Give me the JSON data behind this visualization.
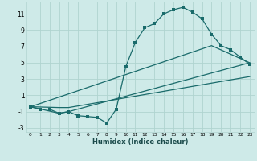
{
  "xlabel": "Humidex (Indice chaleur)",
  "bg_color": "#ceeae8",
  "grid_color": "#b0d4d0",
  "line_color": "#1a6b6b",
  "xlim": [
    -0.5,
    23.5
  ],
  "ylim": [
    -3.5,
    12.5
  ],
  "yticks": [
    -3,
    -1,
    1,
    3,
    5,
    7,
    9,
    11
  ],
  "xticks": [
    0,
    1,
    2,
    3,
    4,
    5,
    6,
    7,
    8,
    9,
    10,
    11,
    12,
    13,
    14,
    15,
    16,
    17,
    18,
    19,
    20,
    21,
    22,
    23
  ],
  "line1_x": [
    0,
    1,
    2,
    3,
    4,
    5,
    6,
    7,
    8,
    9,
    10,
    11,
    12,
    13,
    14,
    15,
    16,
    17,
    18,
    19,
    20,
    21,
    22,
    23
  ],
  "line1_y": [
    -0.4,
    -0.7,
    -0.7,
    -1.2,
    -1.0,
    -1.5,
    -1.6,
    -1.7,
    -2.4,
    -0.7,
    4.5,
    7.5,
    9.3,
    9.8,
    11.0,
    11.5,
    11.8,
    11.2,
    10.4,
    8.5,
    7.1,
    6.6,
    5.7,
    4.8
  ],
  "line2_x": [
    0,
    3,
    4,
    23
  ],
  "line2_y": [
    -0.4,
    -1.2,
    -1.0,
    5.0
  ],
  "line3_x": [
    0,
    3,
    4,
    23
  ],
  "line3_y": [
    -0.4,
    -0.5,
    -0.5,
    3.3
  ],
  "line4_x": [
    0,
    19,
    23
  ],
  "line4_y": [
    -0.4,
    7.1,
    5.0
  ]
}
